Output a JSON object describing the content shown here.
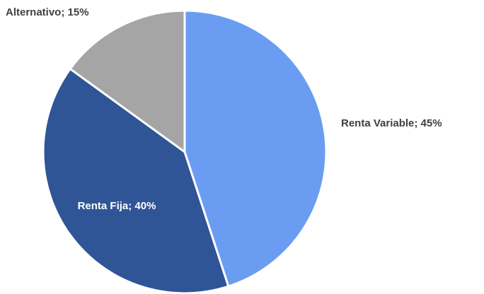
{
  "chart_data": {
    "type": "pie",
    "values": [
      45,
      40,
      15
    ],
    "value_labels": [
      "Renta Variable; 45%",
      "Renta Fija; 40%",
      "Alternativo; 15%"
    ],
    "colors": [
      "#6a9df2",
      "#2f5597",
      "#a5a5a5"
    ]
  }
}
